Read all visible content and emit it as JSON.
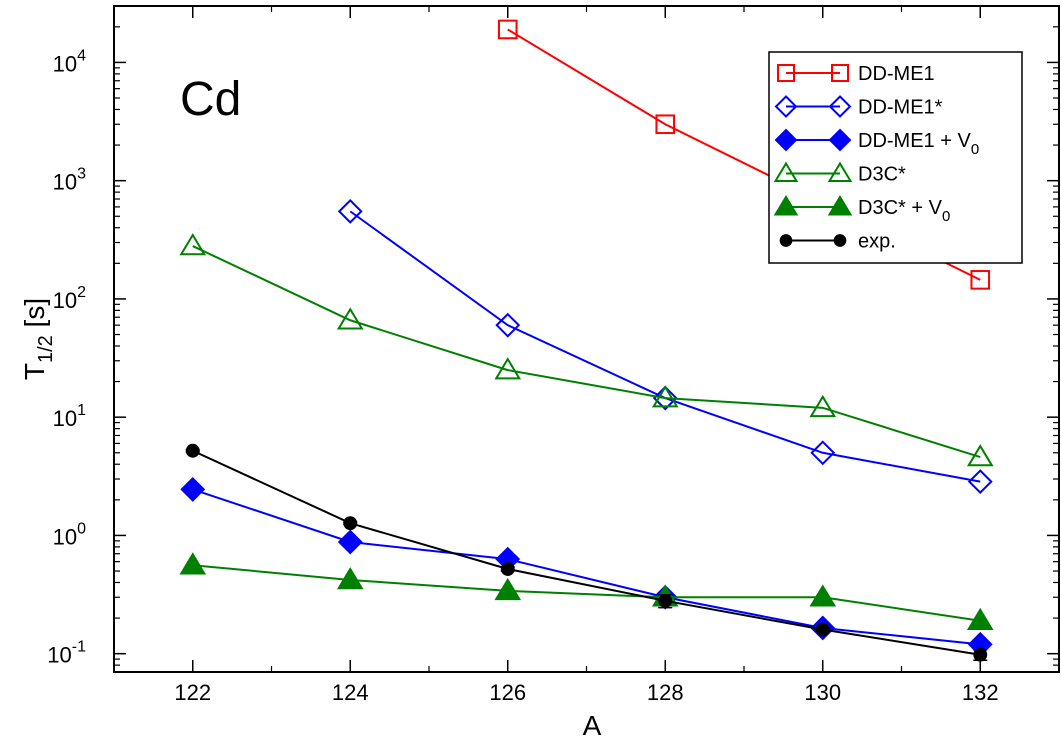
{
  "chart_data": {
    "type": "line",
    "annotation": "Cd",
    "xlabel": "A",
    "ylabel_main": "T",
    "ylabel_sub": "1/2",
    "ylabel_unit": " [s]",
    "xlim": [
      121,
      133
    ],
    "ylim": [
      0.07,
      30000
    ],
    "yscale": "log",
    "xticks": [
      122,
      124,
      126,
      128,
      130,
      132
    ],
    "xtick_labels": [
      "122",
      "124",
      "126",
      "128",
      "130",
      "132"
    ],
    "yticks": [
      0.1,
      1,
      10,
      100,
      1000,
      10000
    ],
    "ytick_labels": [
      {
        "base": "10",
        "exp": "-1"
      },
      {
        "base": "10",
        "exp": "0"
      },
      {
        "base": "10",
        "exp": "1"
      },
      {
        "base": "10",
        "exp": "2"
      },
      {
        "base": "10",
        "exp": "3"
      },
      {
        "base": "10",
        "exp": "4"
      }
    ],
    "grid": false,
    "legend_position": "top-right",
    "series": [
      {
        "name": "DD-ME1",
        "color": "#ff0000",
        "marker": "square",
        "filled": false,
        "x": [
          126,
          128,
          132
        ],
        "y": [
          19000,
          3000,
          145
        ]
      },
      {
        "name": "DD-ME1*",
        "color": "#0000ff",
        "marker": "diamond",
        "filled": false,
        "x": [
          124,
          126,
          128,
          130,
          132
        ],
        "y": [
          550,
          60,
          14.5,
          5.0,
          2.85
        ]
      },
      {
        "name": "DD-ME1 + V",
        "name_sub": "0",
        "color": "#0000ff",
        "marker": "diamond",
        "filled": true,
        "x": [
          122,
          124,
          126,
          128,
          130,
          132
        ],
        "y": [
          2.45,
          0.88,
          0.63,
          0.3,
          0.165,
          0.12
        ]
      },
      {
        "name": "D3C*",
        "color": "#008000",
        "marker": "triangle",
        "filled": false,
        "x": [
          122,
          124,
          126,
          128,
          130,
          132
        ],
        "y": [
          280,
          66,
          25,
          14.5,
          12,
          4.6
        ]
      },
      {
        "name": "D3C* + V",
        "name_sub": "0",
        "color": "#008000",
        "marker": "triangle",
        "filled": true,
        "x": [
          122,
          124,
          126,
          128,
          130,
          132
        ],
        "y": [
          0.56,
          0.42,
          0.34,
          0.3,
          0.3,
          0.19
        ]
      },
      {
        "name": "exp.",
        "color": "#000000",
        "marker": "circle",
        "filled": true,
        "x": [
          122,
          124,
          126,
          128,
          130,
          132
        ],
        "y": [
          5.2,
          1.27,
          0.52,
          0.28,
          0.16,
          0.098
        ],
        "yerr_low": [
          5.1,
          1.24,
          0.5,
          0.245,
          0.155,
          0.088
        ],
        "yerr_high": [
          5.3,
          1.3,
          0.54,
          0.315,
          0.165,
          0.108
        ]
      }
    ]
  }
}
